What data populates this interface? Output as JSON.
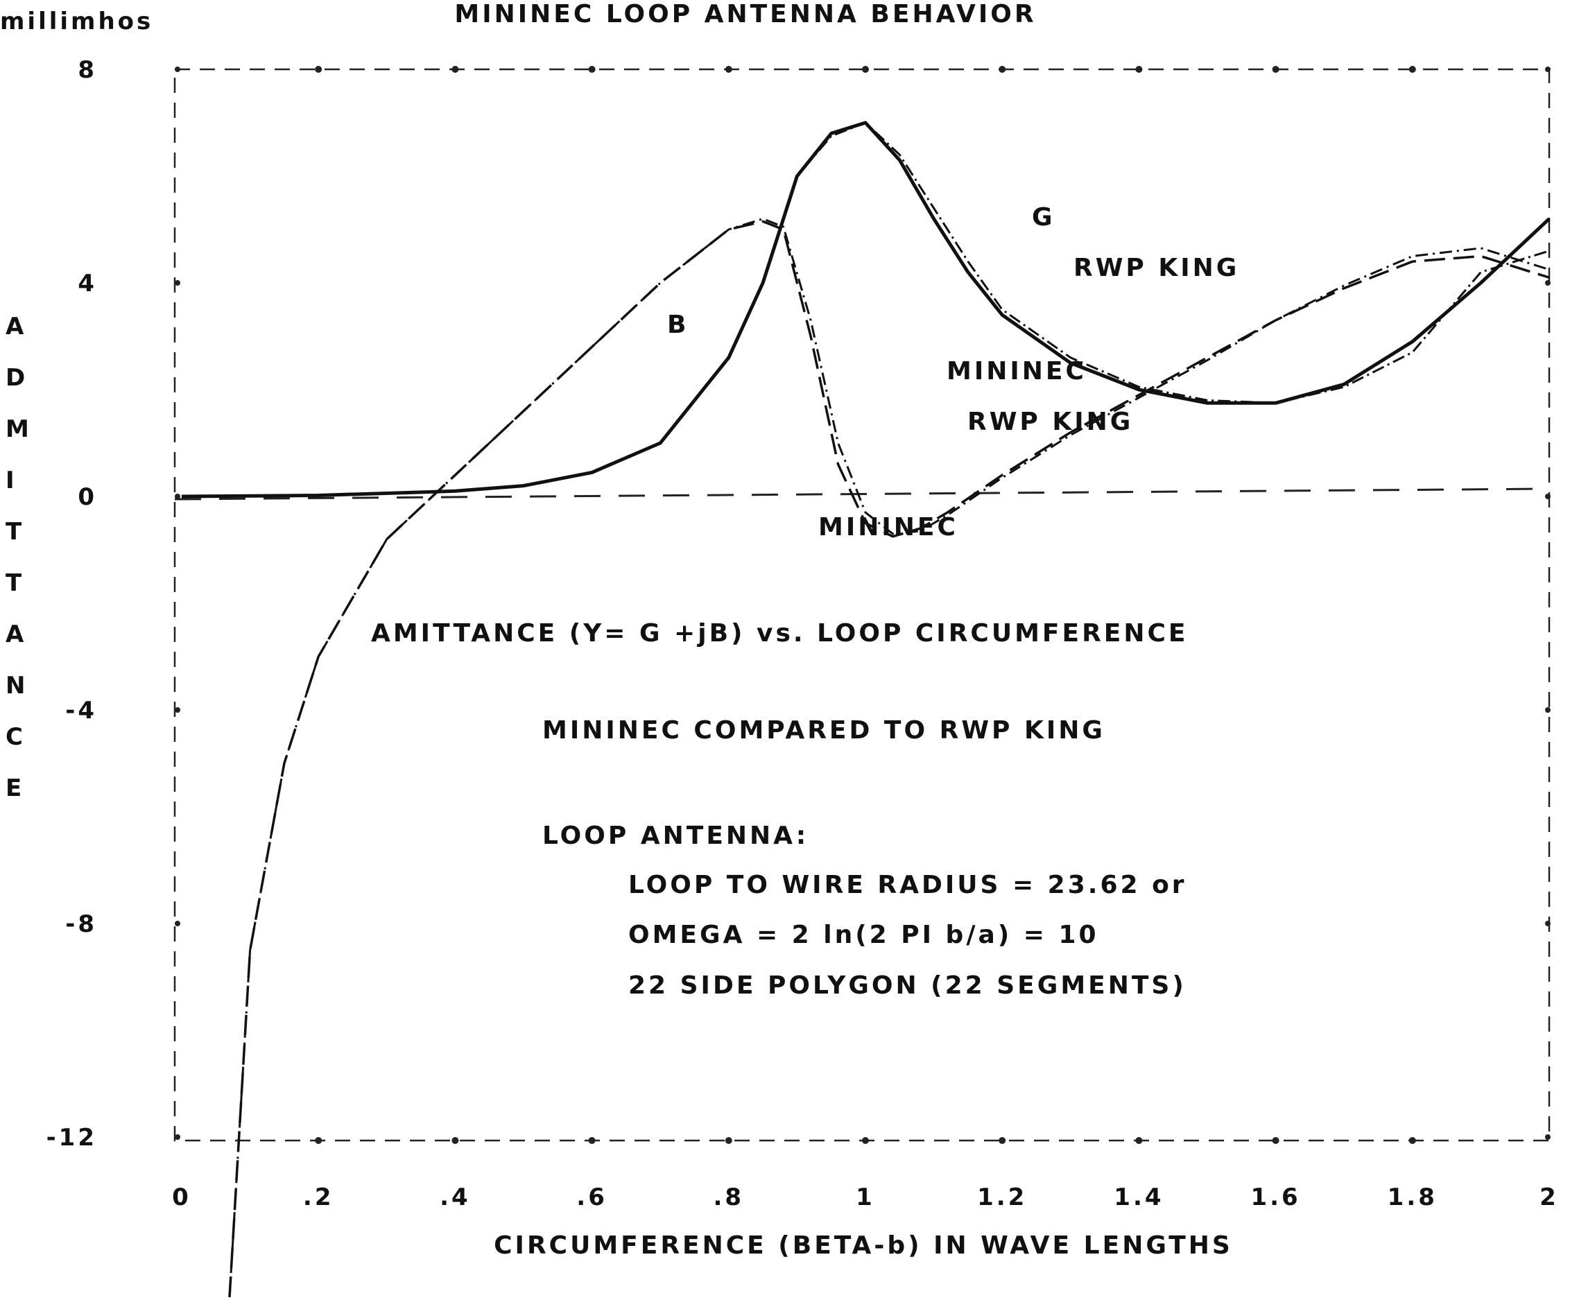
{
  "chart_data": {
    "type": "line",
    "title": "MININEC LOOP ANTENNA BEHAVIOR",
    "unit_label": "millimhos",
    "xlabel": "CIRCUMFERENCE (BETA-b) IN WAVE LENGTHS",
    "ylabel": "ADMITTANCE",
    "ylabel_letters": [
      "A",
      "D",
      "M",
      "I",
      "T",
      "T",
      "A",
      "N",
      "C",
      "E"
    ],
    "x_ticks": [
      "0",
      ".2",
      ".4",
      ".6",
      ".8",
      "1",
      "1.2",
      "1.4",
      "1.6",
      "1.8",
      "2"
    ],
    "y_ticks": [
      "8",
      "4",
      "0",
      "-4",
      "-8",
      "-12"
    ],
    "xlim": [
      0,
      2
    ],
    "ylim": [
      -12,
      8
    ],
    "grid": false,
    "series": [
      {
        "name": "G MININEC",
        "x": [
          0,
          0.2,
          0.4,
          0.5,
          0.6,
          0.7,
          0.8,
          0.85,
          0.9,
          0.95,
          1.0,
          1.05,
          1.1,
          1.15,
          1.2,
          1.3,
          1.4,
          1.5,
          1.6,
          1.7,
          1.8,
          1.9,
          2.0
        ],
        "values": [
          0,
          0.02,
          0.1,
          0.2,
          0.45,
          1.0,
          2.6,
          4.0,
          6.0,
          6.8,
          7.0,
          6.3,
          5.2,
          4.2,
          3.4,
          2.5,
          2.0,
          1.75,
          1.75,
          2.1,
          2.9,
          4.0,
          5.2
        ]
      },
      {
        "name": "G RWP KING",
        "x": [
          0,
          0.2,
          0.4,
          0.5,
          0.6,
          0.7,
          0.8,
          0.85,
          0.9,
          0.95,
          1.0,
          1.05,
          1.1,
          1.15,
          1.2,
          1.3,
          1.4,
          1.5,
          1.6,
          1.7,
          1.8,
          1.9,
          2.0
        ],
        "values": [
          0,
          0.02,
          0.1,
          0.2,
          0.45,
          1.0,
          2.6,
          4.0,
          6.0,
          6.75,
          7.0,
          6.4,
          5.4,
          4.4,
          3.5,
          2.6,
          2.05,
          1.8,
          1.75,
          2.05,
          2.7,
          4.2,
          4.6
        ]
      },
      {
        "name": "B MININEC",
        "x": [
          0.07,
          0.1,
          0.15,
          0.2,
          0.3,
          0.4,
          0.5,
          0.6,
          0.7,
          0.8,
          0.85,
          0.88,
          0.92,
          0.96,
          1.0,
          1.04,
          1.08,
          1.12,
          1.2,
          1.3,
          1.4,
          1.5,
          1.6,
          1.7,
          1.8,
          1.9,
          1.95,
          2.0
        ],
        "values": [
          -15.0,
          -8.5,
          -5.0,
          -3.0,
          -0.8,
          0.4,
          1.6,
          2.8,
          4.0,
          5.0,
          5.15,
          5.0,
          3.0,
          0.6,
          -0.5,
          -0.75,
          -0.6,
          -0.3,
          0.4,
          1.2,
          1.9,
          2.6,
          3.3,
          3.9,
          4.4,
          4.5,
          4.3,
          4.1
        ]
      },
      {
        "name": "B RWP KING",
        "x": [
          0.07,
          0.1,
          0.15,
          0.2,
          0.3,
          0.4,
          0.5,
          0.6,
          0.7,
          0.8,
          0.85,
          0.88,
          0.92,
          0.96,
          1.0,
          1.04,
          1.08,
          1.12,
          1.2,
          1.3,
          1.4,
          1.5,
          1.6,
          1.7,
          1.8,
          1.9,
          1.95,
          2.0
        ],
        "values": [
          -15.0,
          -8.5,
          -5.0,
          -3.0,
          -0.8,
          0.4,
          1.6,
          2.8,
          4.0,
          5.0,
          5.2,
          5.05,
          3.3,
          1.0,
          -0.3,
          -0.7,
          -0.65,
          -0.35,
          0.35,
          1.15,
          1.85,
          2.55,
          3.3,
          3.95,
          4.5,
          4.65,
          4.45,
          4.25
        ]
      }
    ],
    "annotations": {
      "g_label": "G",
      "g_king": "RWP KING",
      "b_label": "B",
      "b_mininec": "MININEC",
      "b_king": "RWP KING",
      "zero_mininec": "MININEC",
      "line1": "AMITTANCE (Y= G +jB) vs. LOOP CIRCUMFERENCE",
      "line2": "MININEC COMPARED TO RWP KING",
      "line3": "LOOP ANTENNA:",
      "line4": "LOOP TO WIRE RADIUS = 23.62 or",
      "line5": "OMEGA = 2 ln(2 PI b/a) = 10",
      "line6": "22 SIDE POLYGON (22 SEGMENTS)"
    }
  }
}
